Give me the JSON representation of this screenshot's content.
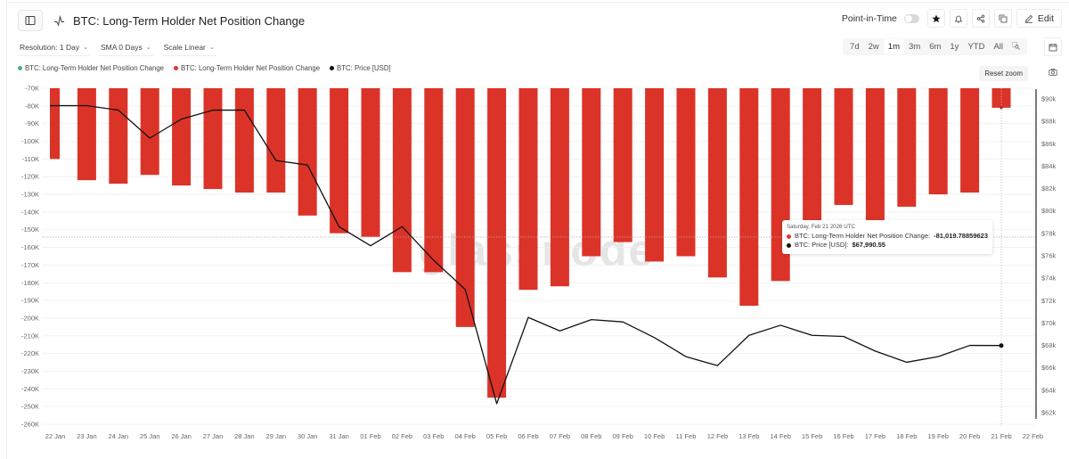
{
  "header": {
    "title": "BTC: Long-Term Holder Net Position Change",
    "point_in_time_label": "Point-in-Time",
    "edit_label": "Edit"
  },
  "controls": {
    "resolution": "Resolution: 1 Day",
    "sma": "SMA 0 Days",
    "scale": "Scale Linear"
  },
  "ranges": [
    "7d",
    "2w",
    "1m",
    "3m",
    "6m",
    "1y",
    "YTD",
    "All"
  ],
  "active_range": "1m",
  "legend": [
    {
      "label": "BTC: Long-Term Holder Net Position Change",
      "color": "#4caf7d"
    },
    {
      "label": "BTC: Long-Term Holder Net Position Change",
      "color": "#e0362c"
    },
    {
      "label": "BTC: Price [USD]",
      "color": "#111111"
    }
  ],
  "reset_zoom_label": "Reset zoom",
  "watermark": "glassnode",
  "tooltip": {
    "date": "Saturday, Feb 21 2026 UTC",
    "row1_label": "BTC: Long-Term Holder Net Position Change: ",
    "row1_value": "-81,019.78859623",
    "row2_label": "BTC: Price [USD]: ",
    "row2_value": "$67,990.55",
    "row1_color": "#e0362c",
    "row2_color": "#111111"
  },
  "colors": {
    "bar": "#dc3328",
    "line": "#111111",
    "grid": "#efefef"
  },
  "chart_data": {
    "type": "bar",
    "title": "BTC: Long-Term Holder Net Position Change",
    "xlabel": "",
    "ylabel": "",
    "categories": [
      "22 Jan",
      "23 Jan",
      "24 Jan",
      "25 Jan",
      "26 Jan",
      "27 Jan",
      "28 Jan",
      "29 Jan",
      "30 Jan",
      "31 Jan",
      "01 Feb",
      "02 Feb",
      "03 Feb",
      "04 Feb",
      "05 Feb",
      "06 Feb",
      "07 Feb",
      "08 Feb",
      "09 Feb",
      "10 Feb",
      "11 Feb",
      "12 Feb",
      "13 Feb",
      "14 Feb",
      "15 Feb",
      "16 Feb",
      "17 Feb",
      "18 Feb",
      "19 Feb",
      "20 Feb",
      "21 Feb"
    ],
    "x_tick_labels": [
      "22 Jan",
      "23 Jan",
      "24 Jan",
      "25 Jan",
      "26 Jan",
      "27 Jan",
      "28 Jan",
      "29 Jan",
      "30 Jan",
      "31 Jan",
      "01 Feb",
      "02 Feb",
      "03 Feb",
      "04 Feb",
      "05 Feb",
      "06 Feb",
      "07 Feb",
      "08 Feb",
      "09 Feb",
      "10 Feb",
      "11 Feb",
      "12 Feb",
      "13 Feb",
      "14 Feb",
      "15 Feb",
      "16 Feb",
      "17 Feb",
      "18 Feb",
      "19 Feb",
      "20 Feb",
      "21 Feb",
      "22 Feb"
    ],
    "series": [
      {
        "name": "BTC: Long-Term Holder Net Position Change",
        "type": "bar",
        "axis": "left",
        "values": [
          -110000,
          -122000,
          -124000,
          -119000,
          -125000,
          -127000,
          -129000,
          -129000,
          -142000,
          -152000,
          -154000,
          -174000,
          -174000,
          -205000,
          -245000,
          -184000,
          -182000,
          -165000,
          -157000,
          -168000,
          -165000,
          -177000,
          -193000,
          -179000,
          -145000,
          -136000,
          -145000,
          -137000,
          -130000,
          -129000,
          -81019.79
        ]
      },
      {
        "name": "BTC: Price [USD]",
        "type": "line",
        "axis": "right",
        "values": [
          89400,
          89400,
          89000,
          86500,
          88200,
          89000,
          89000,
          84500,
          84100,
          78600,
          76900,
          78600,
          75600,
          73000,
          62800,
          70500,
          69300,
          70300,
          70100,
          68700,
          67000,
          66200,
          68900,
          69800,
          68900,
          68800,
          67500,
          66500,
          67000,
          68000,
          67990.55
        ]
      }
    ],
    "y_left": {
      "ticks": [
        "-70K",
        "-80K",
        "-90K",
        "-100K",
        "-110K",
        "-120K",
        "-130K",
        "-140K",
        "-150K",
        "-160K",
        "-170K",
        "-180K",
        "-190K",
        "-200K",
        "-210K",
        "-220K",
        "-230K",
        "-240K",
        "-250K",
        "-260K"
      ],
      "range": [
        -260000,
        -70000
      ]
    },
    "y_right": {
      "ticks": [
        "$90k",
        "$88k",
        "$86k",
        "$84k",
        "$82k",
        "$80k",
        "$78k",
        "$76k",
        "$74k",
        "$72k",
        "$70k",
        "$68k",
        "$66k",
        "$64k",
        "$62k"
      ],
      "range": [
        61000,
        91000
      ]
    },
    "grid": true,
    "legend_position": "top-left",
    "crosshair_y_label": "-155K"
  }
}
